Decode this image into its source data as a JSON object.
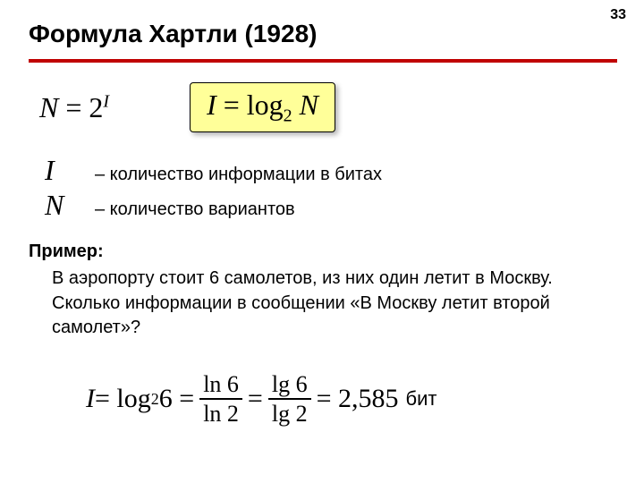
{
  "page": {
    "number": "33",
    "title": "Формула Хартли (1928)"
  },
  "formulas": {
    "f1_lhs": "N",
    "f1_eq": " = 2",
    "f1_sup": "I",
    "box_I": "I",
    "box_eq": " = log",
    "box_sub": "2",
    "box_N": " N"
  },
  "definitions": {
    "sym_I": "I",
    "text_I": "– количество информации в битах",
    "sym_N": "N",
    "text_N": "– количество вариантов"
  },
  "example": {
    "label": "Пример:",
    "text": "В аэропорту стоит 6 самолетов, из них один летит в Москву. Сколько информации в сообщении «В Москву летит второй самолет»?"
  },
  "final": {
    "I": "I",
    "eq1": " = log",
    "sub1": "2",
    "six1": " 6 = ",
    "num1": "ln 6",
    "den1": "ln 2",
    "eq2": " = ",
    "num2": "lg 6",
    "den2": "lg 2",
    "eq3": " = 2,585",
    "bit": " бит"
  }
}
